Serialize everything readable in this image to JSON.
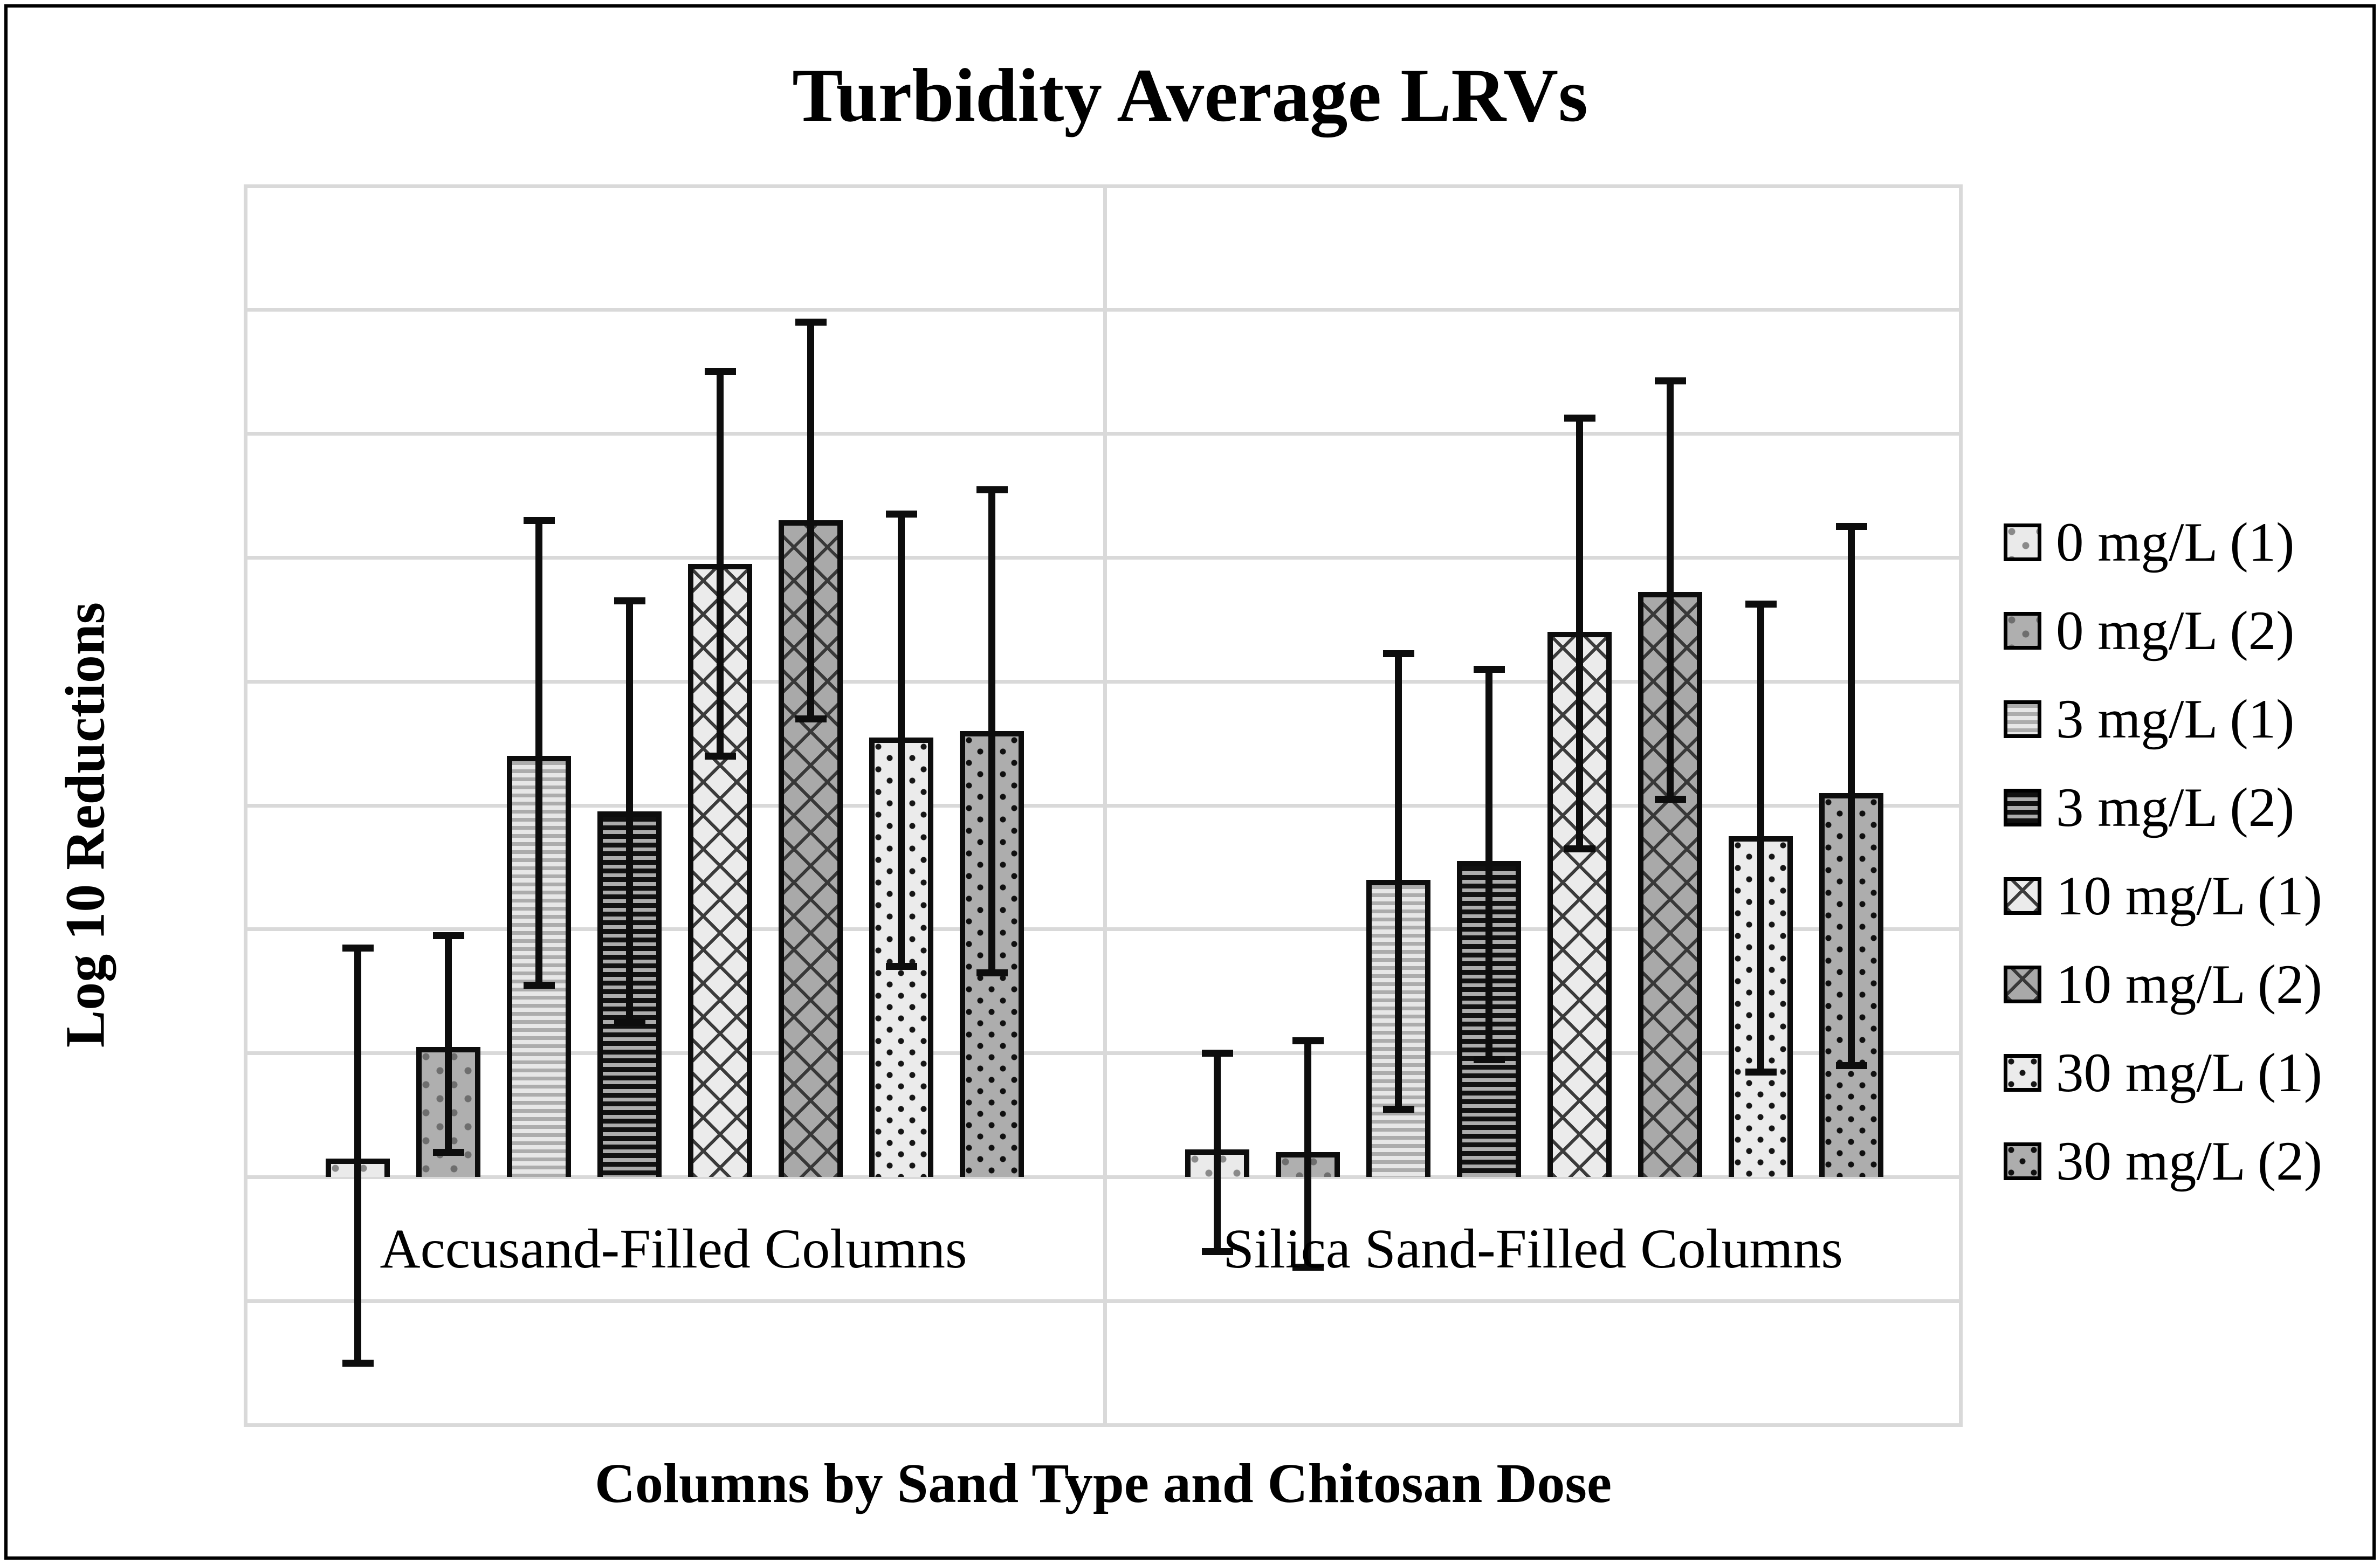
{
  "chart": {
    "title": "Turbidity Average LRVs",
    "y_axis": {
      "title": "Log 10 Reductions"
    },
    "x_axis": {
      "title": "Columns by Sand Type and Chitosan Dose"
    }
  },
  "colors": {
    "gridline": "#d9d9d9",
    "bar_outline": "#0d0d0d",
    "error_bar": "#0d0d0d",
    "fill_light": "#eaeaea",
    "fill_gray": "#adadad",
    "text": "#000000",
    "background": "#ffffff"
  },
  "chart_data": {
    "type": "bar",
    "title": "Turbidity Average LRVs",
    "xlabel": "Columns by Sand Type and Chitosan Dose",
    "ylabel": "Log 10 Reductions",
    "ylim": [
      -0.4,
      1.6
    ],
    "ytick_step": 0.2,
    "yticks": [
      "1.6",
      "1.4",
      "1.2",
      "1",
      "0.8",
      "0.6",
      "0.4",
      "0.2",
      "0",
      "-0.2",
      "-0.4"
    ],
    "grid": true,
    "legend_position": "right",
    "categories": [
      "Accusand-Filled Columns",
      "Silica Sand-Filled Columns"
    ],
    "series": [
      {
        "name": "0 mg/L (1)",
        "pattern": "dots-light",
        "values": [
          0.03,
          0.045
        ],
        "err_low": [
          -0.3,
          -0.12
        ],
        "err_high": [
          0.37,
          0.2
        ]
      },
      {
        "name": "0 mg/L (2)",
        "pattern": "dots-gray",
        "values": [
          0.21,
          0.04
        ],
        "err_low": [
          0.04,
          -0.145
        ],
        "err_high": [
          0.39,
          0.22
        ]
      },
      {
        "name": "3 mg/L (1)",
        "pattern": "hstripes-light",
        "values": [
          0.68,
          0.48
        ],
        "err_low": [
          0.31,
          0.11
        ],
        "err_high": [
          1.06,
          0.845
        ]
      },
      {
        "name": "3 mg/L (2)",
        "pattern": "hstripes-dark",
        "values": [
          0.59,
          0.51
        ],
        "err_low": [
          0.25,
          0.19
        ],
        "err_high": [
          0.93,
          0.82
        ]
      },
      {
        "name": "10 mg/L (1)",
        "pattern": "cross-light",
        "values": [
          0.99,
          0.88
        ],
        "err_low": [
          0.68,
          0.53
        ],
        "err_high": [
          1.3,
          1.225
        ]
      },
      {
        "name": "10 mg/L (2)",
        "pattern": "cross-gray",
        "values": [
          1.06,
          0.945
        ],
        "err_low": [
          0.74,
          0.61
        ],
        "err_high": [
          1.38,
          1.285
        ]
      },
      {
        "name": "30 mg/L (1)",
        "pattern": "specks-light",
        "values": [
          0.71,
          0.55
        ],
        "err_low": [
          0.34,
          0.17
        ],
        "err_high": [
          1.07,
          0.925
        ]
      },
      {
        "name": "30 mg/L (2)",
        "pattern": "specks-gray",
        "values": [
          0.72,
          0.62
        ],
        "err_low": [
          0.33,
          0.18
        ],
        "err_high": [
          1.11,
          1.05
        ]
      }
    ]
  }
}
